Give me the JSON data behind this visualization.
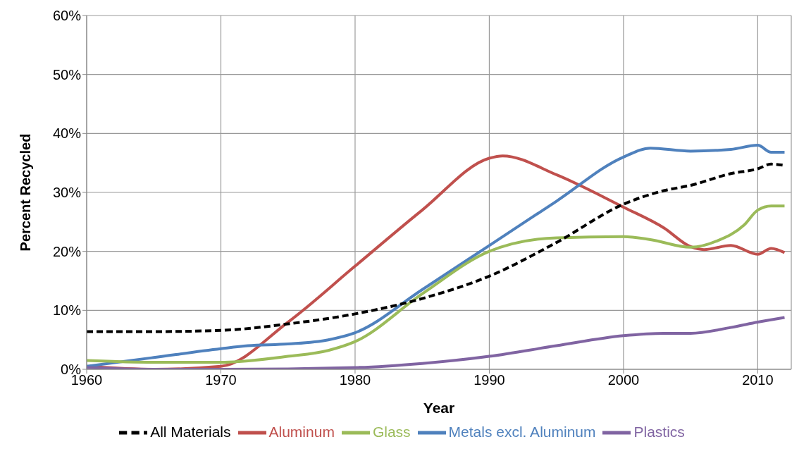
{
  "chart_data": {
    "type": "line",
    "xlabel": "Year",
    "ylabel": "Percent Recycled",
    "xlim": [
      1960,
      2012.5
    ],
    "xticks": [
      1960,
      1970,
      1980,
      1990,
      2000,
      2010
    ],
    "ylim": [
      0,
      60
    ],
    "yticks": [
      {
        "value": 0,
        "label": "0%"
      },
      {
        "value": 10,
        "label": "10%"
      },
      {
        "value": 20,
        "label": "20%"
      },
      {
        "value": 30,
        "label": "30%"
      },
      {
        "value": 40,
        "label": "40%"
      },
      {
        "value": 50,
        "label": "50%"
      },
      {
        "value": 60,
        "label": "60%"
      }
    ],
    "grid": true,
    "legend": "bottom",
    "marker": "none",
    "series": [
      {
        "name": "Aluminum",
        "color": "#c0504d",
        "line_style": "solid",
        "x": [
          1960,
          1965,
          1970,
          1975,
          1980,
          1985,
          1990,
          1991,
          1995,
          2000,
          2003,
          2005,
          2006,
          2008,
          2010,
          2011,
          2012
        ],
        "values": [
          0.5,
          0,
          0.5,
          8,
          17.5,
          27,
          35.8,
          36.2,
          33,
          27.5,
          24,
          20.8,
          20.3,
          21,
          19.5,
          20.5,
          19.8
        ]
      },
      {
        "name": "Metals excl. Aluminum",
        "color": "#4f81bd",
        "line_style": "solid",
        "x": [
          1960,
          1965,
          1970,
          1972,
          1975,
          1978,
          1980,
          1985,
          1990,
          1995,
          2000,
          2002,
          2005,
          2008,
          2010,
          2011,
          2012
        ],
        "values": [
          0.5,
          2,
          3.5,
          4,
          4.3,
          5,
          6.2,
          13.5,
          21,
          28.5,
          36,
          37.5,
          37,
          37.3,
          38,
          36.8,
          36.8
        ]
      },
      {
        "name": "Glass",
        "color": "#9bbb59",
        "line_style": "solid",
        "x": [
          1960,
          1965,
          1970,
          1975,
          1978,
          1980,
          1985,
          1990,
          1995,
          2000,
          2002,
          2005,
          2007,
          2009,
          2010,
          2011,
          2012
        ],
        "values": [
          1.5,
          1.2,
          1.2,
          2.2,
          3.2,
          4.7,
          12.8,
          20,
          22.3,
          22.5,
          22,
          20.7,
          21.8,
          24.5,
          27,
          27.7,
          27.7
        ]
      },
      {
        "name": "Plastics",
        "color": "#8064a2",
        "line_style": "solid",
        "x": [
          1960,
          1965,
          1970,
          1980,
          1985,
          1990,
          1995,
          2000,
          2003,
          2005,
          2008,
          2010,
          2012
        ],
        "values": [
          0.3,
          0,
          0,
          0.3,
          1,
          2.2,
          4,
          5.7,
          6.1,
          6.1,
          7.1,
          8,
          8.8
        ]
      },
      {
        "name": "All Materials",
        "color": "#000000",
        "line_style": "dashed",
        "x": [
          1960,
          1965,
          1970,
          1975,
          1980,
          1985,
          1990,
          1995,
          2000,
          2003,
          2005,
          2008,
          2010,
          2011,
          2012
        ],
        "values": [
          6.4,
          6.4,
          6.6,
          7.7,
          9.4,
          12,
          15.8,
          21.5,
          28,
          30.3,
          31.2,
          33.2,
          34,
          34.8,
          34.6
        ]
      }
    ]
  }
}
